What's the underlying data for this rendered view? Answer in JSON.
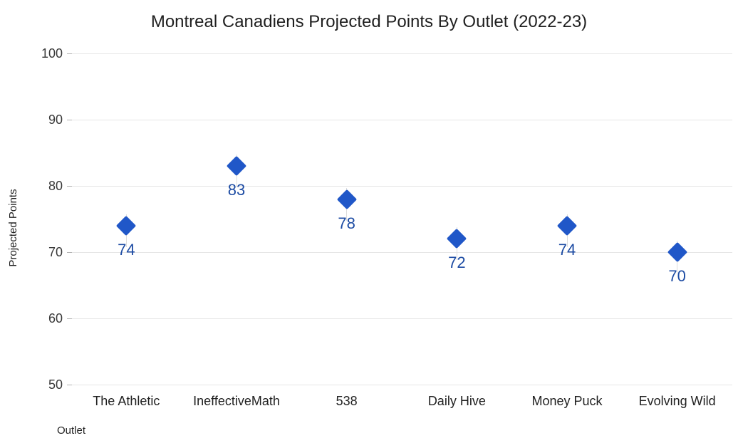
{
  "title": "Montreal Canadiens Projected Points By Outlet (2022-23)",
  "chart_data": {
    "type": "scatter",
    "title": "Montreal Canadiens Projected Points By Outlet (2022-23)",
    "categories": [
      "The Athletic",
      "IneffectiveMath",
      "538",
      "Daily Hive",
      "Money Puck",
      "Evolving Wild"
    ],
    "values": [
      74,
      83,
      78,
      72,
      74,
      70
    ],
    "xlabel": "Outlet",
    "ylabel": "Projected Points",
    "ylim": [
      50,
      100
    ],
    "yticks": [
      50,
      60,
      70,
      80,
      90,
      100
    ],
    "grid": true,
    "legend": "none",
    "marker": "diamond",
    "data_labels_shown": true
  },
  "colors": {
    "marker": "#2057c8",
    "data_label": "#1c4ba3",
    "gridline": "#e6e6e6",
    "tick_mark": "#b3b3b3",
    "stem": "#dcdcdc",
    "title_text": "#1f1f1f",
    "tick_text": "#3a3a3a",
    "category_text": "#212121",
    "background": "#ffffff"
  }
}
